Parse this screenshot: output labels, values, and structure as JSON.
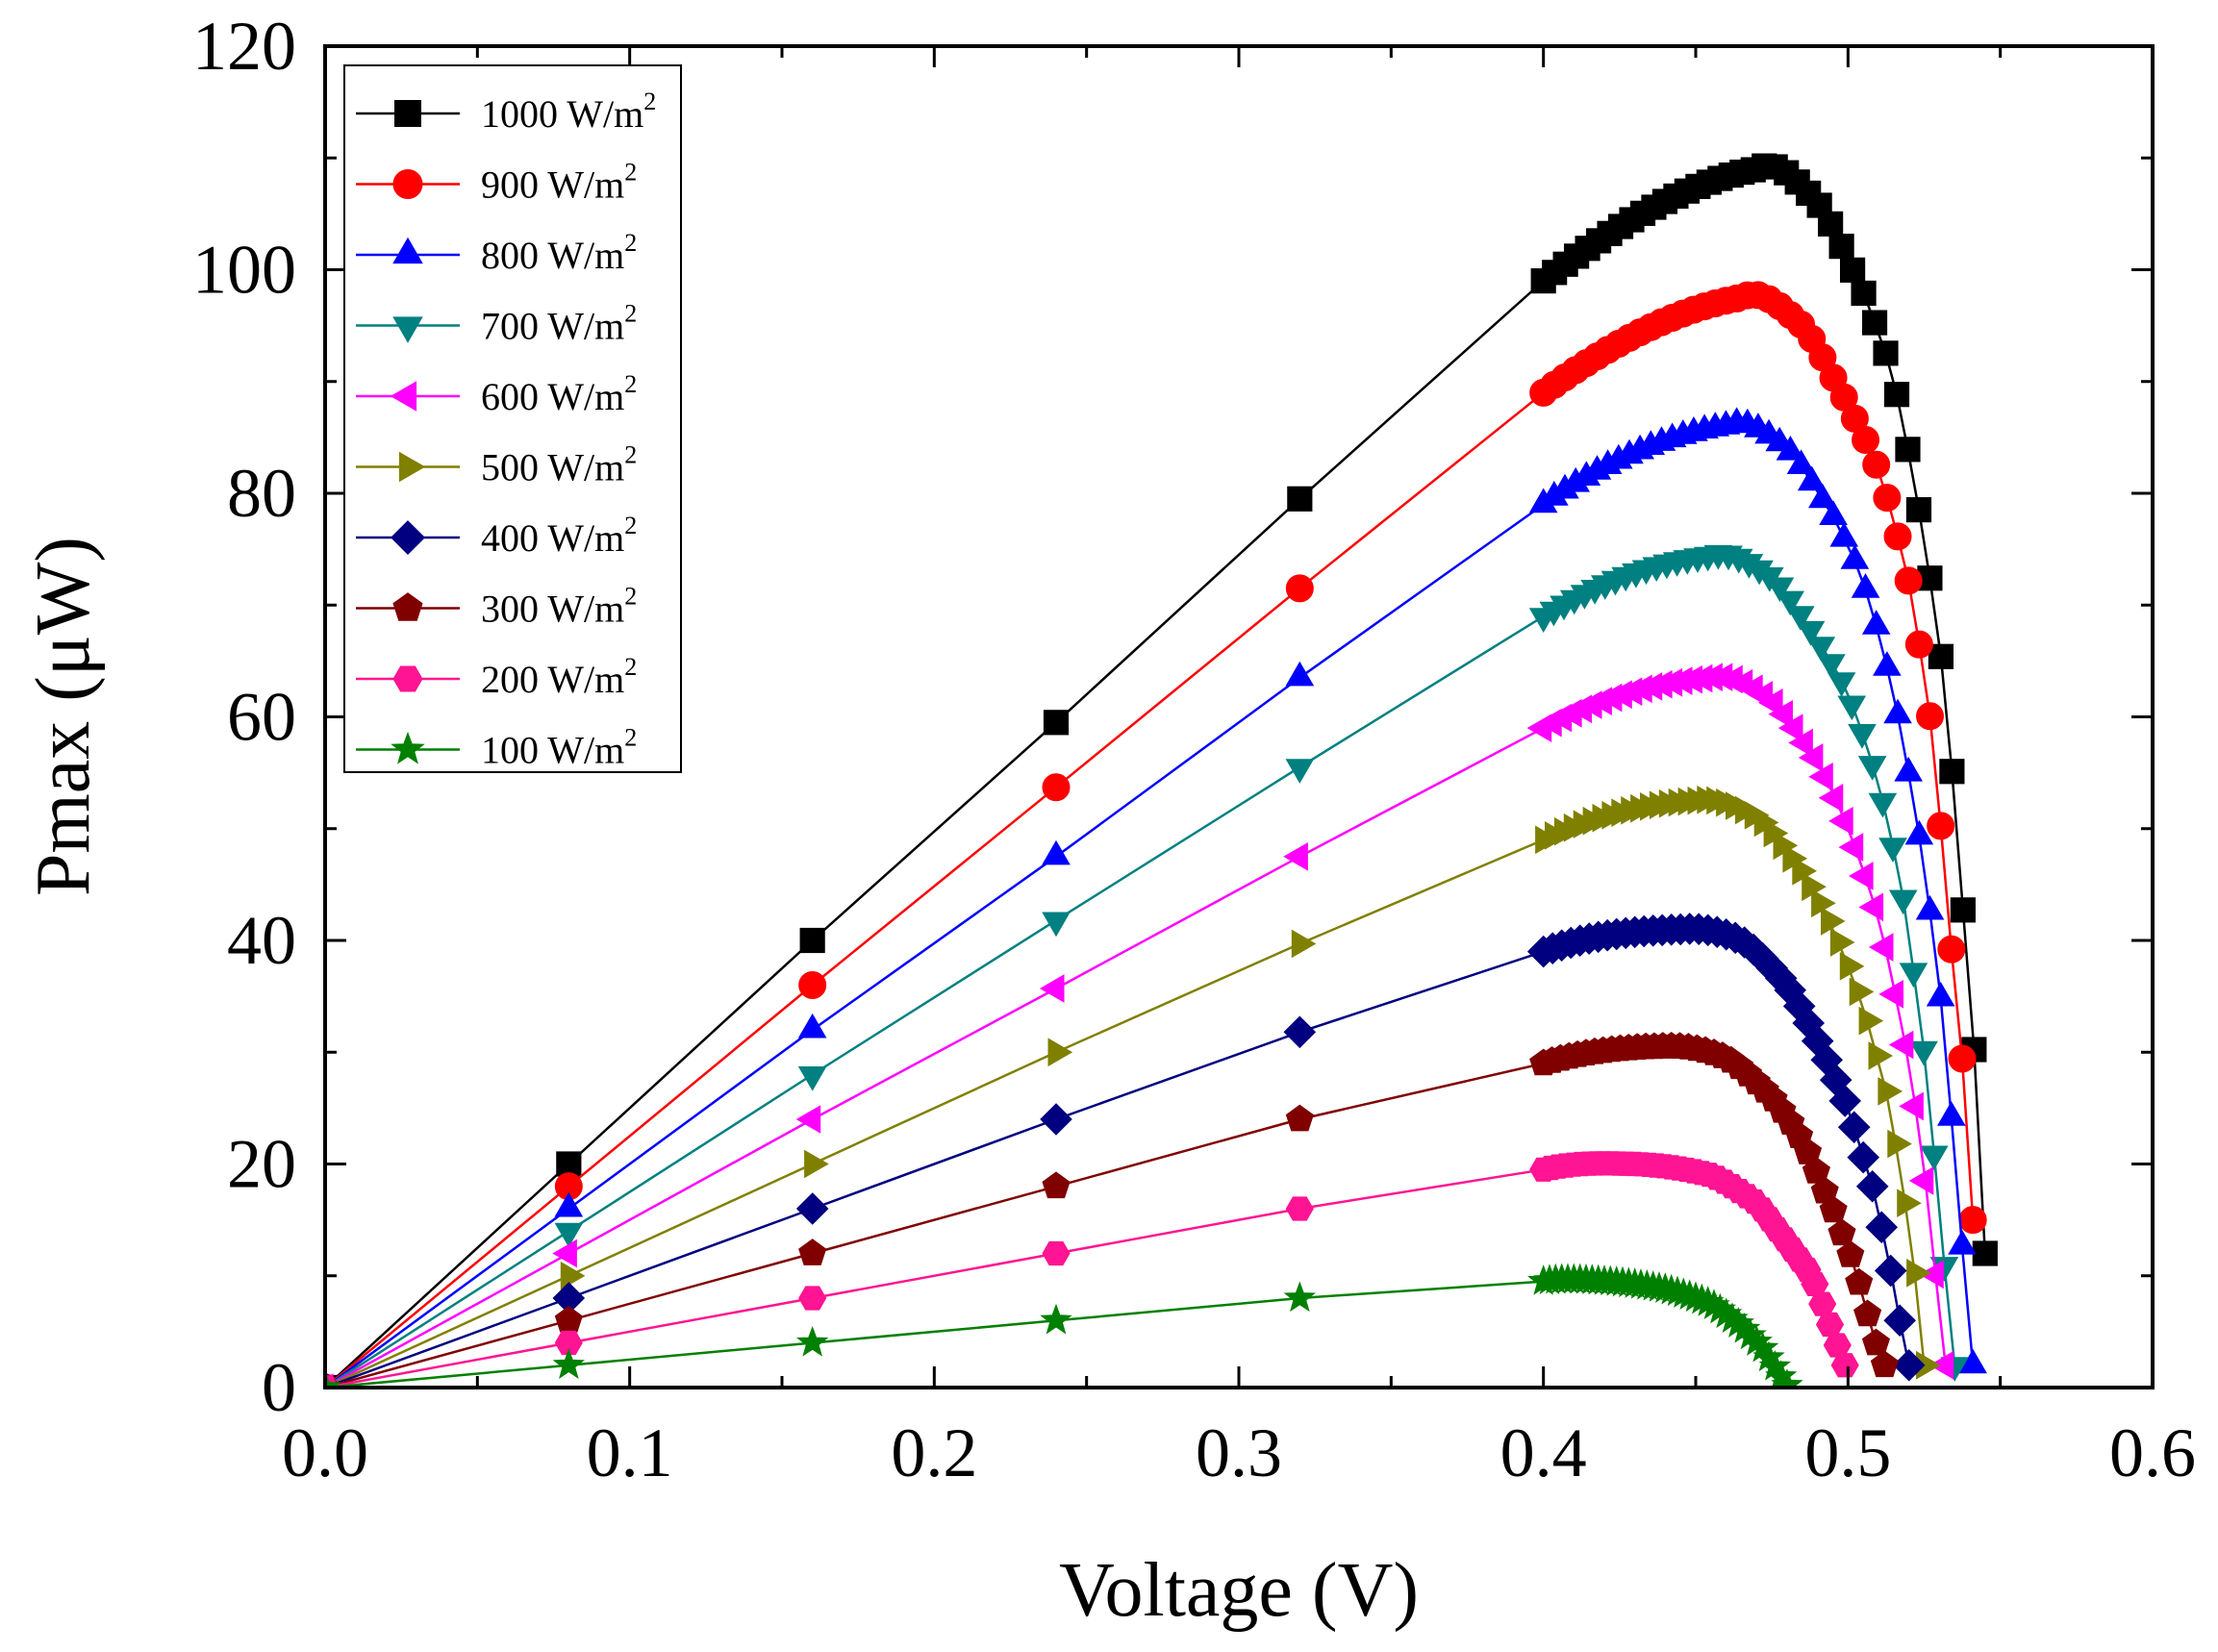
{
  "chart_data": {
    "type": "line",
    "title": "",
    "xlabel": "Voltage (V)",
    "ylabel": "Pmax (μW)",
    "xlim": [
      0.0,
      0.6
    ],
    "ylim": [
      0,
      120
    ],
    "xticks": [
      0.0,
      0.1,
      0.2,
      0.3,
      0.4,
      0.5,
      0.6
    ],
    "xtick_labels": [
      "0.0",
      "0.1",
      "0.2",
      "0.3",
      "0.4",
      "0.5",
      "0.6"
    ],
    "yticks": [
      0,
      20,
      40,
      60,
      80,
      100,
      120
    ],
    "ytick_labels": [
      "0",
      "20",
      "40",
      "60",
      "80",
      "100",
      "120"
    ],
    "grid": false,
    "legend_position": "top-left",
    "series": [
      {
        "name": "1000 W/m",
        "superscript": "2",
        "color": "#000000",
        "marker": "square",
        "voc": 0.545,
        "points": [
          [
            0.0,
            0
          ],
          [
            0.08,
            20
          ],
          [
            0.16,
            40
          ],
          [
            0.24,
            59.5
          ],
          [
            0.32,
            79.5
          ],
          [
            0.4,
            99
          ],
          [
            0.47,
            109
          ],
          [
            0.49,
            106
          ],
          [
            0.505,
            98
          ],
          [
            0.515,
            90
          ],
          [
            0.525,
            76
          ],
          [
            0.532,
            62
          ],
          [
            0.538,
            42
          ],
          [
            0.542,
            28
          ],
          [
            0.545,
            12
          ]
        ]
      },
      {
        "name": "900 W/m",
        "superscript": "2",
        "color": "#ff0000",
        "marker": "circle",
        "voc": 0.541,
        "points": [
          [
            0.0,
            0
          ],
          [
            0.08,
            18
          ],
          [
            0.16,
            36
          ],
          [
            0.24,
            53.7
          ],
          [
            0.32,
            71.5
          ],
          [
            0.4,
            89
          ],
          [
            0.465,
            97.5
          ],
          [
            0.485,
            95
          ],
          [
            0.5,
            88
          ],
          [
            0.51,
            82
          ],
          [
            0.52,
            72
          ],
          [
            0.528,
            58
          ],
          [
            0.533,
            42
          ],
          [
            0.538,
            28
          ],
          [
            0.541,
            15
          ]
        ]
      },
      {
        "name": "800 W/m",
        "superscript": "2",
        "color": "#0000ff",
        "marker": "triangle-up",
        "voc": 0.541,
        "points": [
          [
            0.0,
            0
          ],
          [
            0.08,
            16
          ],
          [
            0.16,
            32
          ],
          [
            0.24,
            47.5
          ],
          [
            0.32,
            63.5
          ],
          [
            0.4,
            79
          ],
          [
            0.46,
            86
          ],
          [
            0.48,
            84
          ],
          [
            0.495,
            78
          ],
          [
            0.505,
            72
          ],
          [
            0.515,
            62
          ],
          [
            0.523,
            50
          ],
          [
            0.53,
            36
          ],
          [
            0.536,
            18
          ],
          [
            0.541,
            2
          ]
        ]
      },
      {
        "name": "700 W/m",
        "superscript": "2",
        "color": "#008080",
        "marker": "triangle-down",
        "voc": 0.535,
        "points": [
          [
            0.0,
            0
          ],
          [
            0.08,
            14
          ],
          [
            0.16,
            28
          ],
          [
            0.24,
            41.8
          ],
          [
            0.32,
            55.5
          ],
          [
            0.4,
            69
          ],
          [
            0.455,
            74.5
          ],
          [
            0.475,
            72.5
          ],
          [
            0.49,
            67
          ],
          [
            0.5,
            62
          ],
          [
            0.51,
            54
          ],
          [
            0.518,
            44
          ],
          [
            0.525,
            30
          ],
          [
            0.53,
            16
          ],
          [
            0.535,
            2
          ]
        ]
      },
      {
        "name": "600 W/m",
        "superscript": "2",
        "color": "#ff00ff",
        "marker": "triangle-left",
        "voc": 0.532,
        "points": [
          [
            0.0,
            0
          ],
          [
            0.08,
            12
          ],
          [
            0.16,
            24
          ],
          [
            0.24,
            35.7
          ],
          [
            0.32,
            47.5
          ],
          [
            0.4,
            59
          ],
          [
            0.455,
            63.5
          ],
          [
            0.475,
            61.5
          ],
          [
            0.49,
            56
          ],
          [
            0.5,
            50
          ],
          [
            0.51,
            42
          ],
          [
            0.518,
            32
          ],
          [
            0.524,
            22
          ],
          [
            0.528,
            12
          ],
          [
            0.532,
            2
          ]
        ]
      },
      {
        "name": "500 W/m",
        "superscript": "2",
        "color": "#808000",
        "marker": "triangle-right",
        "voc": 0.525,
        "points": [
          [
            0.0,
            0
          ],
          [
            0.08,
            10
          ],
          [
            0.16,
            20
          ],
          [
            0.24,
            30
          ],
          [
            0.32,
            39.7
          ],
          [
            0.4,
            49
          ],
          [
            0.45,
            52.5
          ],
          [
            0.47,
            51
          ],
          [
            0.485,
            46
          ],
          [
            0.495,
            41
          ],
          [
            0.505,
            34
          ],
          [
            0.513,
            26
          ],
          [
            0.518,
            18
          ],
          [
            0.522,
            10
          ],
          [
            0.525,
            2
          ]
        ]
      },
      {
        "name": "400 W/m",
        "superscript": "2",
        "color": "#000080",
        "marker": "diamond",
        "voc": 0.52,
        "points": [
          [
            0.0,
            0
          ],
          [
            0.08,
            8
          ],
          [
            0.16,
            16
          ],
          [
            0.24,
            24
          ],
          [
            0.32,
            31.8
          ],
          [
            0.4,
            39
          ],
          [
            0.445,
            41
          ],
          [
            0.465,
            40
          ],
          [
            0.48,
            36
          ],
          [
            0.49,
            31
          ],
          [
            0.5,
            25
          ],
          [
            0.508,
            18
          ],
          [
            0.513,
            12
          ],
          [
            0.517,
            6
          ],
          [
            0.52,
            2
          ]
        ]
      },
      {
        "name": "300 W/m",
        "superscript": "2",
        "color": "#800000",
        "marker": "pentagon",
        "voc": 0.512,
        "points": [
          [
            0.0,
            0
          ],
          [
            0.08,
            6
          ],
          [
            0.16,
            12
          ],
          [
            0.24,
            18
          ],
          [
            0.32,
            24
          ],
          [
            0.4,
            29
          ],
          [
            0.44,
            30.5
          ],
          [
            0.46,
            29.5
          ],
          [
            0.475,
            26
          ],
          [
            0.485,
            22
          ],
          [
            0.495,
            16
          ],
          [
            0.502,
            11
          ],
          [
            0.507,
            6
          ],
          [
            0.512,
            2
          ]
        ]
      },
      {
        "name": "200 W/m",
        "superscript": "2",
        "color": "#ff1493",
        "marker": "hexagon",
        "voc": 0.499,
        "points": [
          [
            0.0,
            0
          ],
          [
            0.08,
            4
          ],
          [
            0.16,
            8
          ],
          [
            0.24,
            12
          ],
          [
            0.32,
            16
          ],
          [
            0.4,
            19.5
          ],
          [
            0.43,
            20
          ],
          [
            0.455,
            19
          ],
          [
            0.47,
            16.5
          ],
          [
            0.48,
            13
          ],
          [
            0.488,
            10
          ],
          [
            0.493,
            6.5
          ],
          [
            0.497,
            3.5
          ],
          [
            0.499,
            2
          ]
        ]
      },
      {
        "name": "100 W/m",
        "superscript": "2",
        "color": "#008000",
        "marker": "star",
        "voc": 0.48,
        "points": [
          [
            0.0,
            0
          ],
          [
            0.08,
            2
          ],
          [
            0.16,
            4
          ],
          [
            0.24,
            6
          ],
          [
            0.32,
            8
          ],
          [
            0.4,
            9.5
          ],
          [
            0.42,
            9.5
          ],
          [
            0.44,
            8.8
          ],
          [
            0.455,
            7.5
          ],
          [
            0.465,
            5.5
          ],
          [
            0.472,
            3.5
          ],
          [
            0.477,
            1.5
          ],
          [
            0.48,
            0.2
          ]
        ]
      }
    ]
  }
}
